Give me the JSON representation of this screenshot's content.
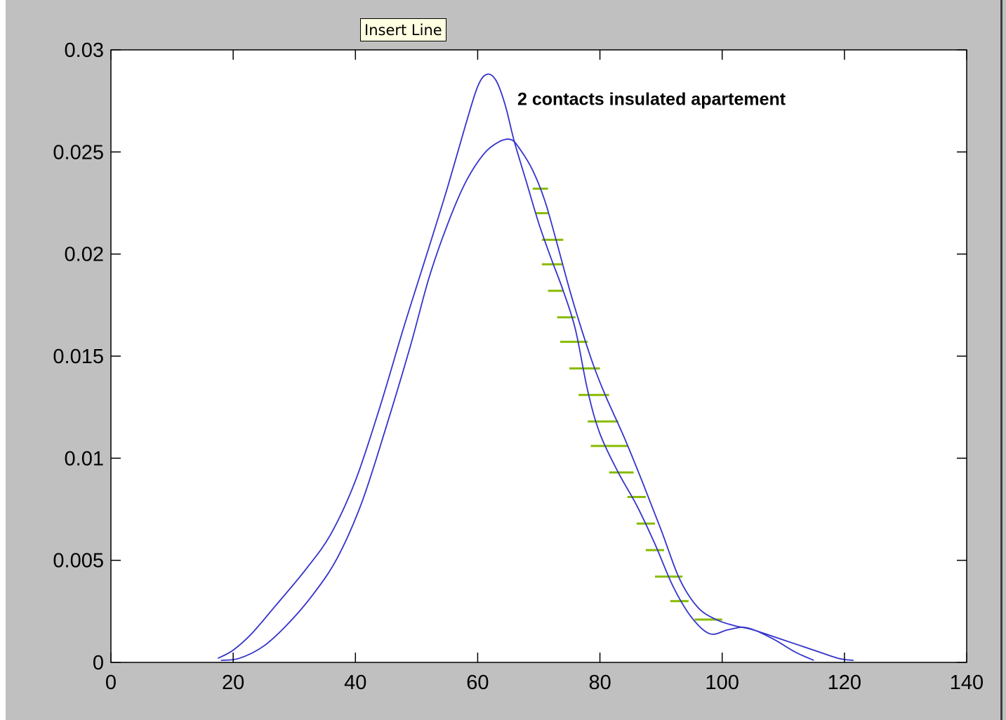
{
  "tooltip": {
    "label": "Insert Line"
  },
  "colors": {
    "figure_bg": "#c0c0c0",
    "axes_bg": "#ffffff",
    "curve": "#3333cc",
    "hatch": "#88bb00",
    "text": "#000000"
  },
  "chart_data": {
    "type": "line",
    "title": "",
    "xlabel": "",
    "ylabel": "",
    "xlim": [
      0,
      140
    ],
    "ylim": [
      0,
      0.03
    ],
    "x_ticks": [
      0,
      20,
      40,
      60,
      80,
      100,
      120,
      140
    ],
    "x_tick_labels": [
      "0",
      "20",
      "40",
      "60",
      "80",
      "100",
      "120",
      "140"
    ],
    "y_ticks": [
      0,
      0.005,
      0.01,
      0.015,
      0.02,
      0.025,
      0.03
    ],
    "y_tick_labels": [
      "0",
      "0.005",
      "0.01",
      "0.015",
      "0.02",
      "0.025",
      "0.03"
    ],
    "grid": false,
    "annotation": {
      "text": "2 contacts  insulated apartement",
      "x": 66.5,
      "y": 0.0273
    },
    "series": [
      {
        "values": [
          [
            17.5,
            0.0002
          ],
          [
            20,
            0.0006
          ],
          [
            23,
            0.0014
          ],
          [
            27,
            0.0028
          ],
          [
            32,
            0.0046
          ],
          [
            36,
            0.0063
          ],
          [
            40,
            0.0089
          ],
          [
            44,
            0.0125
          ],
          [
            48,
            0.0165
          ],
          [
            52,
            0.0203
          ],
          [
            55,
            0.0232
          ],
          [
            58,
            0.0263
          ],
          [
            60,
            0.0282
          ],
          [
            61.5,
            0.0288
          ],
          [
            63,
            0.0285
          ],
          [
            64.5,
            0.0273
          ],
          [
            66,
            0.0255
          ],
          [
            68,
            0.0235
          ],
          [
            70,
            0.0215
          ],
          [
            72,
            0.0198
          ],
          [
            74,
            0.0182
          ],
          [
            76,
            0.0163
          ],
          [
            78,
            0.0133
          ],
          [
            80,
            0.0112
          ],
          [
            83,
            0.0093
          ],
          [
            86,
            0.0077
          ],
          [
            89,
            0.0058
          ],
          [
            92,
            0.0037
          ],
          [
            95,
            0.0022
          ],
          [
            98,
            0.0014
          ],
          [
            101,
            0.0016
          ],
          [
            104,
            0.0017
          ],
          [
            108,
            0.0012
          ],
          [
            112,
            0.0005
          ],
          [
            115,
            0.0001
          ]
        ]
      },
      {
        "values": [
          [
            18,
            0.0001
          ],
          [
            21,
            0.0002
          ],
          [
            25,
            0.0008
          ],
          [
            29,
            0.0019
          ],
          [
            33,
            0.0033
          ],
          [
            37,
            0.0051
          ],
          [
            41,
            0.0078
          ],
          [
            45,
            0.0115
          ],
          [
            49,
            0.0155
          ],
          [
            52,
            0.0188
          ],
          [
            55,
            0.0214
          ],
          [
            58,
            0.0235
          ],
          [
            61,
            0.0249
          ],
          [
            63.5,
            0.0255
          ],
          [
            65.5,
            0.0256
          ],
          [
            67,
            0.0251
          ],
          [
            69,
            0.0241
          ],
          [
            71,
            0.0226
          ],
          [
            73,
            0.0205
          ],
          [
            75,
            0.0183
          ],
          [
            77,
            0.0163
          ],
          [
            79,
            0.0145
          ],
          [
            81,
            0.013
          ],
          [
            84,
            0.011
          ],
          [
            87,
            0.0088
          ],
          [
            90,
            0.0065
          ],
          [
            93,
            0.0041
          ],
          [
            96,
            0.0027
          ],
          [
            99,
            0.0021
          ],
          [
            102,
            0.0018
          ],
          [
            105,
            0.0016
          ],
          [
            110,
            0.0011
          ],
          [
            115,
            0.0006
          ],
          [
            119,
            0.0002
          ],
          [
            121.5,
            0.0001
          ]
        ]
      }
    ],
    "hatch_marks": [
      {
        "x0": 69.0,
        "x1": 71.5,
        "y": 0.0232
      },
      {
        "x0": 69.5,
        "x1": 71.5,
        "y": 0.022
      },
      {
        "x0": 70.5,
        "x1": 74.0,
        "y": 0.0207
      },
      {
        "x0": 70.5,
        "x1": 74.0,
        "y": 0.0195
      },
      {
        "x0": 71.5,
        "x1": 74.0,
        "y": 0.0182
      },
      {
        "x0": 73.0,
        "x1": 76.0,
        "y": 0.0169
      },
      {
        "x0": 73.5,
        "x1": 78.0,
        "y": 0.0157
      },
      {
        "x0": 75.0,
        "x1": 80.0,
        "y": 0.0144
      },
      {
        "x0": 76.5,
        "x1": 81.5,
        "y": 0.0131
      },
      {
        "x0": 78.0,
        "x1": 83.0,
        "y": 0.0118
      },
      {
        "x0": 78.5,
        "x1": 84.5,
        "y": 0.0106
      },
      {
        "x0": 81.5,
        "x1": 85.5,
        "y": 0.0093
      },
      {
        "x0": 84.5,
        "x1": 87.5,
        "y": 0.0081
      },
      {
        "x0": 86.0,
        "x1": 89.0,
        "y": 0.0068
      },
      {
        "x0": 87.5,
        "x1": 90.5,
        "y": 0.0055
      },
      {
        "x0": 89.0,
        "x1": 93.5,
        "y": 0.0042
      },
      {
        "x0": 91.5,
        "x1": 94.5,
        "y": 0.003
      },
      {
        "x0": 95.5,
        "x1": 100.0,
        "y": 0.0021
      }
    ]
  }
}
